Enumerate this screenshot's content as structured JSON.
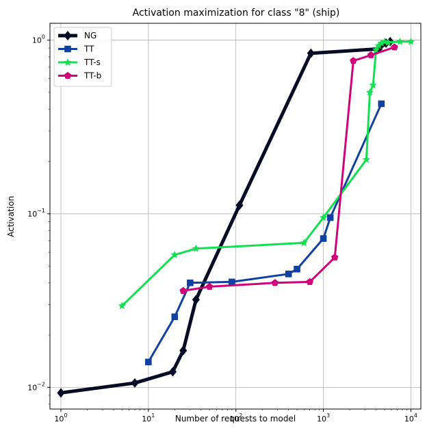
{
  "chart_data": {
    "type": "line",
    "title": "Activation maximization for class \"8\" (ship)",
    "xlabel": "Number of requests to model",
    "ylabel": "Activation",
    "xscale": "log",
    "yscale": "log",
    "xlim": [
      0.75,
      13000
    ],
    "ylim": [
      0.0075,
      1.25
    ],
    "xticks": [
      {
        "value": 1,
        "base": "10",
        "exp": "0"
      },
      {
        "value": 10,
        "base": "10",
        "exp": "1"
      },
      {
        "value": 100,
        "base": "10",
        "exp": "2"
      },
      {
        "value": 1000,
        "base": "10",
        "exp": "3"
      },
      {
        "value": 10000,
        "base": "10",
        "exp": "4"
      }
    ],
    "yticks": [
      {
        "value": 0.01,
        "base": "10",
        "exp": "−2"
      },
      {
        "value": 0.1,
        "base": "10",
        "exp": "−1"
      },
      {
        "value": 1,
        "base": "10",
        "exp": "0"
      }
    ],
    "grid": true,
    "legend_position": "top-left",
    "series": [
      {
        "name": "NG",
        "color": "#050c24",
        "marker": "diamond",
        "linewidth": 5,
        "x": [
          1,
          7,
          19,
          25,
          35,
          110,
          720,
          4300,
          5200,
          5800
        ],
        "y": [
          0.0093,
          0.0106,
          0.0123,
          0.0163,
          0.032,
          0.112,
          0.84,
          0.89,
          0.96,
          0.98
        ]
      },
      {
        "name": "TT",
        "color": "#1040a0",
        "marker": "square",
        "linewidth": 3,
        "x": [
          10,
          20,
          30,
          90,
          400,
          500,
          1000,
          1200,
          4600
        ],
        "y": [
          0.014,
          0.0255,
          0.04,
          0.0405,
          0.045,
          0.048,
          0.072,
          0.095,
          0.43
        ]
      },
      {
        "name": "TT-s",
        "color": "#10e050",
        "marker": "star",
        "linewidth": 3,
        "x": [
          5,
          20,
          35,
          600,
          1000,
          3100,
          3400,
          3700,
          4000,
          4300,
          4600,
          5000,
          5500,
          7500,
          10000
        ],
        "y": [
          0.0295,
          0.058,
          0.063,
          0.068,
          0.095,
          0.205,
          0.5,
          0.55,
          0.88,
          0.93,
          0.96,
          0.98,
          0.97,
          0.98,
          0.98
        ]
      },
      {
        "name": "TT-b",
        "color": "#d00078",
        "marker": "pentagon",
        "linewidth": 3,
        "x": [
          25,
          50,
          280,
          700,
          1350,
          2200,
          3500,
          6500
        ],
        "y": [
          0.036,
          0.038,
          0.04,
          0.0405,
          0.056,
          0.76,
          0.82,
          0.91
        ]
      }
    ]
  }
}
